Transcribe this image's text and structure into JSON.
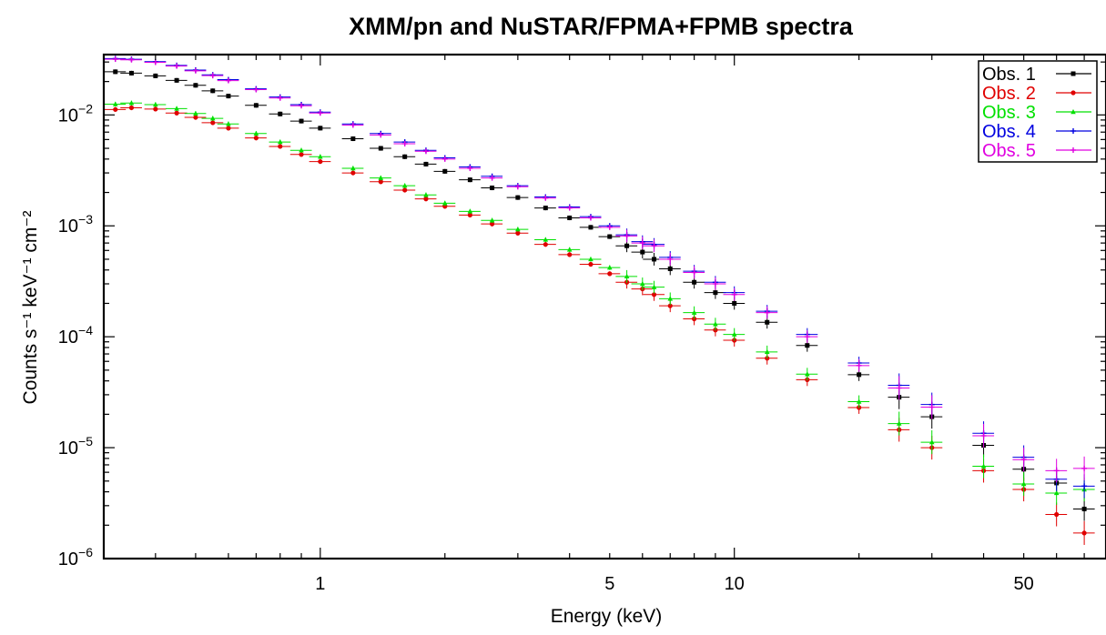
{
  "chart_data": {
    "type": "scatter",
    "title": "XMM/pn and NuSTAR/FPMA+FPMB spectra",
    "xlabel": "Energy (keV)",
    "ylabel": "Counts s⁻¹ keV⁻¹ cm⁻²",
    "xscale": "log",
    "yscale": "log",
    "xlim": [
      0.3,
      79
    ],
    "ylim": [
      1e-06,
      0.035
    ],
    "grid": false,
    "legend_position": "top-right",
    "x_ticks": [
      {
        "value": 1,
        "label": "1"
      },
      {
        "value": 5,
        "label": "5"
      },
      {
        "value": 10,
        "label": "10"
      },
      {
        "value": 50,
        "label": "50"
      }
    ],
    "y_ticks": [
      {
        "value": 1e-06,
        "base": "10",
        "exp": "−6"
      },
      {
        "value": 1e-05,
        "base": "10",
        "exp": "−5"
      },
      {
        "value": 0.0001,
        "base": "10",
        "exp": "−4"
      },
      {
        "value": 0.001,
        "base": "10",
        "exp": "−3"
      },
      {
        "value": 0.01,
        "base": "10",
        "exp": "−2"
      }
    ],
    "series": [
      {
        "name": "Obs. 1",
        "color": "#000000",
        "marker": "square",
        "points": [
          [
            0.32,
            0.0245
          ],
          [
            0.35,
            0.0238
          ],
          [
            0.4,
            0.0225
          ],
          [
            0.45,
            0.0205
          ],
          [
            0.5,
            0.0185
          ],
          [
            0.55,
            0.0165
          ],
          [
            0.6,
            0.0148
          ],
          [
            0.7,
            0.0122
          ],
          [
            0.8,
            0.0102
          ],
          [
            0.9,
            0.0088
          ],
          [
            1.0,
            0.0076
          ],
          [
            1.2,
            0.0061
          ],
          [
            1.4,
            0.005
          ],
          [
            1.6,
            0.0042
          ],
          [
            1.8,
            0.0036
          ],
          [
            2.0,
            0.0031
          ],
          [
            2.3,
            0.0026
          ],
          [
            2.6,
            0.0022
          ],
          [
            3.0,
            0.0018
          ],
          [
            3.5,
            0.00145
          ],
          [
            4.0,
            0.00118
          ],
          [
            4.5,
            0.00097
          ],
          [
            5.0,
            0.0008
          ],
          [
            5.5,
            0.00066
          ],
          [
            6.0,
            0.00058
          ],
          [
            6.4,
            0.0005
          ],
          [
            7.0,
            0.00041
          ],
          [
            8.0,
            0.00031
          ],
          [
            9.0,
            0.00025
          ],
          [
            10.0,
            0.0002
          ],
          [
            12.0,
            0.000135
          ],
          [
            15.0,
            8.35e-05
          ],
          [
            20.0,
            4.55e-05
          ],
          [
            25.0,
            2.85e-05
          ],
          [
            30.0,
            1.9e-05
          ],
          [
            40.0,
            1.05e-05
          ],
          [
            50.0,
            6.4e-06
          ],
          [
            60.0,
            4.8e-06
          ],
          [
            70.0,
            2.8e-06
          ]
        ]
      },
      {
        "name": "Obs. 2",
        "color": "#e00000",
        "marker": "circle",
        "points": [
          [
            0.32,
            0.0112
          ],
          [
            0.35,
            0.0116
          ],
          [
            0.4,
            0.0113
          ],
          [
            0.45,
            0.0104
          ],
          [
            0.5,
            0.0095
          ],
          [
            0.55,
            0.0085
          ],
          [
            0.6,
            0.0076
          ],
          [
            0.7,
            0.0062
          ],
          [
            0.8,
            0.0052
          ],
          [
            0.9,
            0.0044
          ],
          [
            1.0,
            0.0038
          ],
          [
            1.2,
            0.003
          ],
          [
            1.4,
            0.0025
          ],
          [
            1.6,
            0.0021
          ],
          [
            1.8,
            0.00175
          ],
          [
            2.0,
            0.0015
          ],
          [
            2.3,
            0.00125
          ],
          [
            2.6,
            0.00104
          ],
          [
            3.0,
            0.00086
          ],
          [
            3.5,
            0.00068
          ],
          [
            4.0,
            0.00055
          ],
          [
            4.5,
            0.00045
          ],
          [
            5.0,
            0.00037
          ],
          [
            5.5,
            0.00031
          ],
          [
            6.0,
            0.00027
          ],
          [
            6.4,
            0.00024
          ],
          [
            7.0,
            0.00019
          ],
          [
            8.0,
            0.000145
          ],
          [
            9.0,
            0.000115
          ],
          [
            10.0,
            9.3e-05
          ],
          [
            12.0,
            6.4e-05
          ],
          [
            15.0,
            4.1e-05
          ],
          [
            20.0,
            2.3e-05
          ],
          [
            25.0,
            1.45e-05
          ],
          [
            30.0,
            1e-05
          ],
          [
            40.0,
            6.2e-06
          ],
          [
            50.0,
            4.2e-06
          ],
          [
            60.0,
            2.5e-06
          ],
          [
            70.0,
            1.7e-06
          ]
        ]
      },
      {
        "name": "Obs. 3",
        "color": "#00e000",
        "marker": "triangle",
        "points": [
          [
            0.32,
            0.0125
          ],
          [
            0.35,
            0.0128
          ],
          [
            0.4,
            0.0124
          ],
          [
            0.45,
            0.0114
          ],
          [
            0.5,
            0.0103
          ],
          [
            0.55,
            0.0093
          ],
          [
            0.6,
            0.0083
          ],
          [
            0.7,
            0.0068
          ],
          [
            0.8,
            0.0057
          ],
          [
            0.9,
            0.0048
          ],
          [
            1.0,
            0.0042
          ],
          [
            1.2,
            0.0033
          ],
          [
            1.4,
            0.0027
          ],
          [
            1.6,
            0.0023
          ],
          [
            1.8,
            0.0019
          ],
          [
            2.0,
            0.0016
          ],
          [
            2.3,
            0.00135
          ],
          [
            2.6,
            0.00112
          ],
          [
            3.0,
            0.00093
          ],
          [
            3.5,
            0.00075
          ],
          [
            4.0,
            0.00061
          ],
          [
            4.5,
            0.0005
          ],
          [
            5.0,
            0.00042
          ],
          [
            5.5,
            0.00035
          ],
          [
            6.0,
            0.0003
          ],
          [
            6.4,
            0.00028
          ],
          [
            7.0,
            0.00022
          ],
          [
            8.0,
            0.000165
          ],
          [
            9.0,
            0.00013
          ],
          [
            10.0,
            0.000105
          ],
          [
            12.0,
            7.3e-05
          ],
          [
            15.0,
            4.6e-05
          ],
          [
            20.0,
            2.6e-05
          ],
          [
            25.0,
            1.65e-05
          ],
          [
            30.0,
            1.12e-05
          ],
          [
            40.0,
            6.8e-06
          ],
          [
            50.0,
            4.7e-06
          ],
          [
            60.0,
            3.9e-06
          ],
          [
            70.0,
            4.2e-06
          ]
        ]
      },
      {
        "name": "Obs. 4",
        "color": "#0000e0",
        "marker": "cross",
        "points": [
          [
            0.32,
            0.0322
          ],
          [
            0.35,
            0.0318
          ],
          [
            0.4,
            0.0302
          ],
          [
            0.45,
            0.028
          ],
          [
            0.5,
            0.0254
          ],
          [
            0.55,
            0.023
          ],
          [
            0.6,
            0.0208
          ],
          [
            0.7,
            0.0172
          ],
          [
            0.8,
            0.0145
          ],
          [
            0.9,
            0.0124
          ],
          [
            1.0,
            0.0106
          ],
          [
            1.2,
            0.0083
          ],
          [
            1.4,
            0.0068
          ],
          [
            1.6,
            0.0057
          ],
          [
            1.8,
            0.0048
          ],
          [
            2.0,
            0.0041
          ],
          [
            2.3,
            0.0034
          ],
          [
            2.6,
            0.0028
          ],
          [
            3.0,
            0.0023
          ],
          [
            3.5,
            0.00182
          ],
          [
            4.0,
            0.00148
          ],
          [
            4.5,
            0.00121
          ],
          [
            5.0,
            0.001
          ],
          [
            5.5,
            0.00083
          ],
          [
            6.0,
            0.00072
          ],
          [
            6.4,
            0.00068
          ],
          [
            7.0,
            0.00052
          ],
          [
            8.0,
            0.00039
          ],
          [
            9.0,
            0.00031
          ],
          [
            10.0,
            0.00025
          ],
          [
            12.0,
            0.00017
          ],
          [
            15.0,
            0.000105
          ],
          [
            20.0,
            5.8e-05
          ],
          [
            25.0,
            3.65e-05
          ],
          [
            30.0,
            2.45e-05
          ],
          [
            40.0,
            1.35e-05
          ],
          [
            50.0,
            8.2e-06
          ],
          [
            60.0,
            5.2e-06
          ],
          [
            70.0,
            4.5e-06
          ]
        ]
      },
      {
        "name": "Obs. 5",
        "color": "#e000e0",
        "marker": "cross",
        "points": [
          [
            0.32,
            0.0318
          ],
          [
            0.35,
            0.0314
          ],
          [
            0.4,
            0.0298
          ],
          [
            0.45,
            0.0276
          ],
          [
            0.5,
            0.025
          ],
          [
            0.55,
            0.0226
          ],
          [
            0.6,
            0.0204
          ],
          [
            0.7,
            0.0169
          ],
          [
            0.8,
            0.0142
          ],
          [
            0.9,
            0.0121
          ],
          [
            1.0,
            0.0104
          ],
          [
            1.2,
            0.0081
          ],
          [
            1.4,
            0.0066
          ],
          [
            1.6,
            0.0055
          ],
          [
            1.8,
            0.0047
          ],
          [
            2.0,
            0.004
          ],
          [
            2.3,
            0.0033
          ],
          [
            2.6,
            0.0027
          ],
          [
            3.0,
            0.00225
          ],
          [
            3.5,
            0.00178
          ],
          [
            4.0,
            0.00145
          ],
          [
            4.5,
            0.00118
          ],
          [
            5.0,
            0.00097
          ],
          [
            5.5,
            0.00081
          ],
          [
            6.0,
            0.0007
          ],
          [
            6.4,
            0.00066
          ],
          [
            7.0,
            0.0005
          ],
          [
            8.0,
            0.00038
          ],
          [
            9.0,
            0.0003
          ],
          [
            10.0,
            0.00024
          ],
          [
            12.0,
            0.000165
          ],
          [
            15.0,
            0.0001
          ],
          [
            20.0,
            5.5e-05
          ],
          [
            25.0,
            3.45e-05
          ],
          [
            30.0,
            2.32e-05
          ],
          [
            40.0,
            1.28e-05
          ],
          [
            50.0,
            7.8e-06
          ],
          [
            60.0,
            6.2e-06
          ],
          [
            70.0,
            6.5e-06
          ]
        ]
      }
    ]
  }
}
